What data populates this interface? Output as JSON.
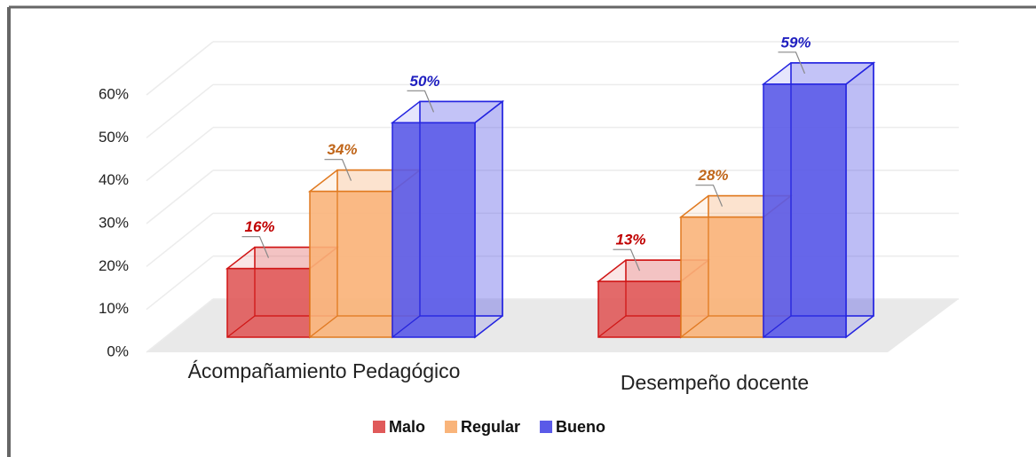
{
  "chart_data": {
    "type": "bar3d",
    "categories": [
      "Ácompañamiento Pedagógico",
      "Desempeño docente"
    ],
    "series": [
      {
        "name": "Malo",
        "color": "#e05a5a",
        "stroke": "#d01515",
        "label_color": "#c00000",
        "values": [
          16,
          13
        ],
        "value_labels": [
          "16%",
          "13%"
        ]
      },
      {
        "name": "Regular",
        "color": "#f9b47a",
        "stroke": "#e07a20",
        "label_color": "#c0661a",
        "values": [
          34,
          28
        ],
        "value_labels": [
          "34%",
          "28%"
        ]
      },
      {
        "name": "Bueno",
        "color": "#5a5ae8",
        "stroke": "#2424e0",
        "label_color": "#2020c0",
        "values": [
          50,
          59
        ],
        "value_labels": [
          "50%",
          "59%"
        ]
      }
    ],
    "ylim": [
      0,
      60
    ],
    "yticks": [
      {
        "value": 0,
        "label": "0%"
      },
      {
        "value": 10,
        "label": "10%"
      },
      {
        "value": 20,
        "label": "20%"
      },
      {
        "value": 30,
        "label": "30%"
      },
      {
        "value": 40,
        "label": "40%"
      },
      {
        "value": 50,
        "label": "50%"
      },
      {
        "value": 60,
        "label": "60%"
      }
    ],
    "grid": true,
    "legend": "bottom"
  }
}
